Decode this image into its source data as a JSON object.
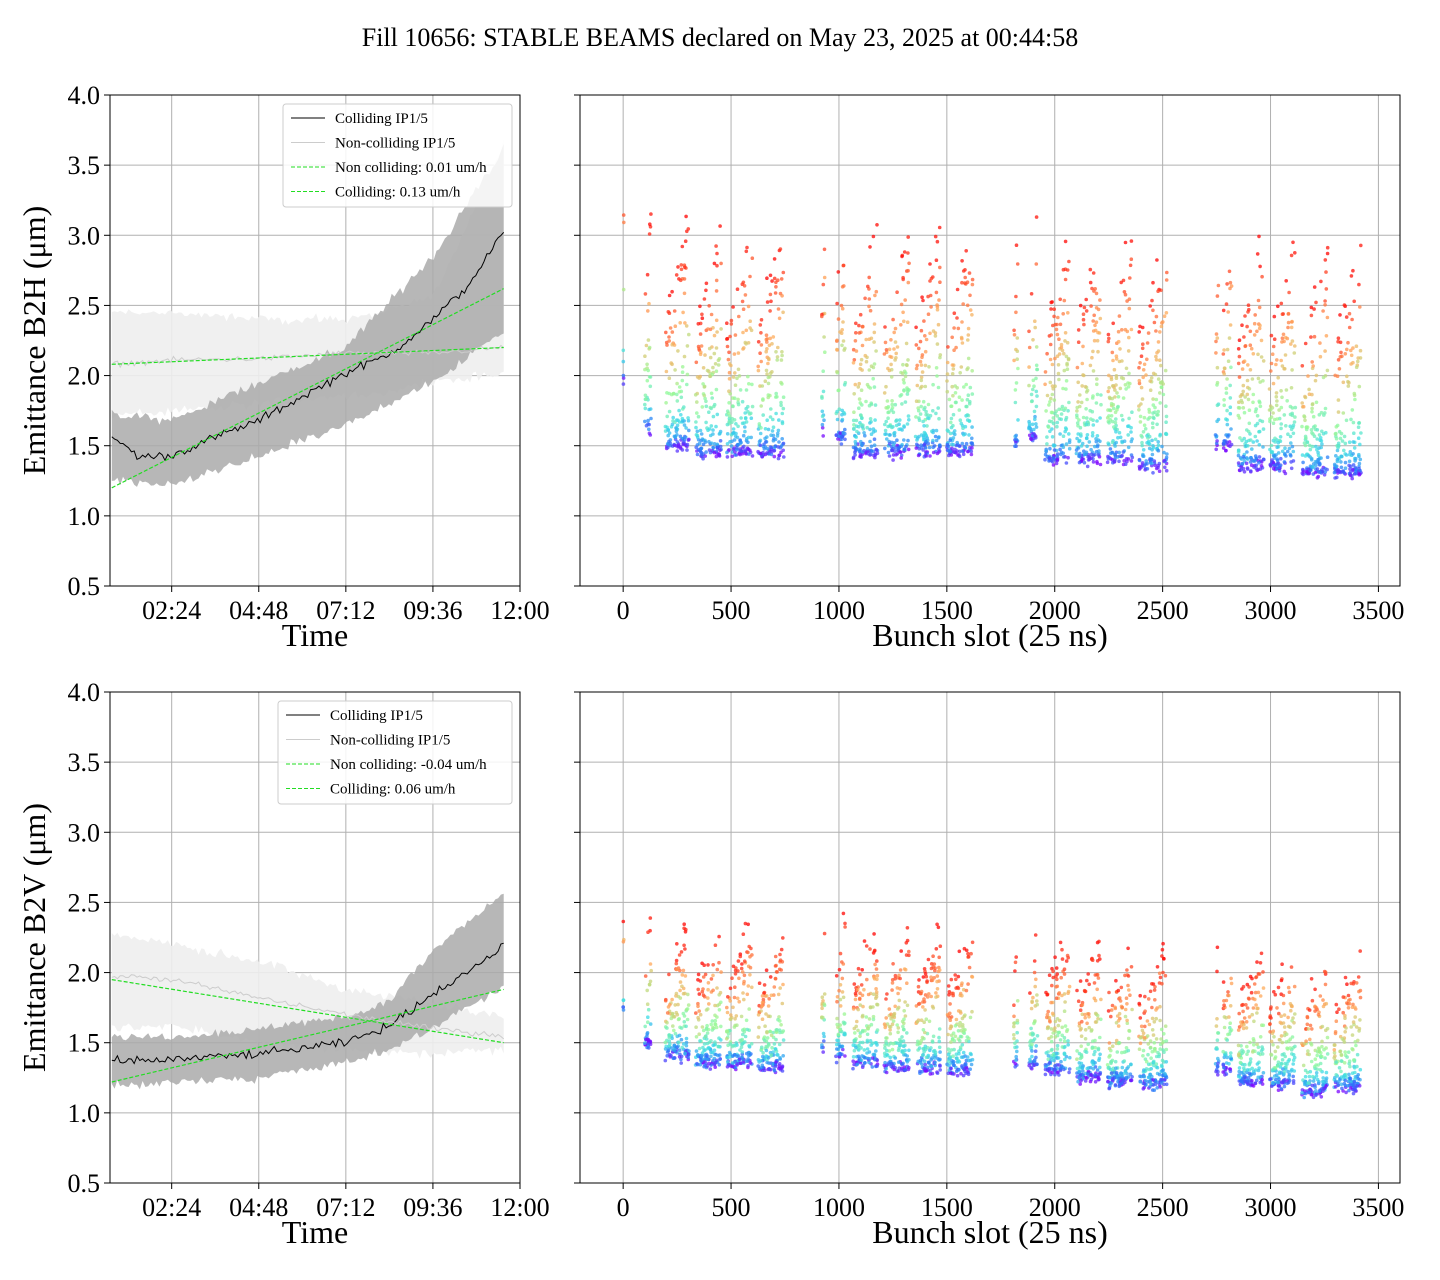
{
  "figure": {
    "title": "Fill 10656: STABLE BEAMS declared on May 23, 2025 at 00:44:58"
  },
  "colors": {
    "colliding": "#000000",
    "non_colliding": "#cccccc",
    "fit": "#22dd22",
    "band_colliding": "#aaaaaa",
    "band_non_colliding": "#eeeeee",
    "grid": "#b0b0b0"
  },
  "chart_data": [
    {
      "id": "b2h-time",
      "type": "line",
      "xlabel": "Time",
      "ylabel": "Emittance B2H (μm)",
      "ylim": [
        0.5,
        4.0
      ],
      "yticks": [
        "0.5",
        "1.0",
        "1.5",
        "2.0",
        "2.5",
        "3.0",
        "3.5",
        "4.0"
      ],
      "x_range_hours": [
        0.7,
        12.0
      ],
      "xticks": [
        {
          "label": "02:24",
          "h": 2.4
        },
        {
          "label": "04:48",
          "h": 4.8
        },
        {
          "label": "07:12",
          "h": 7.2
        },
        {
          "label": "09:36",
          "h": 9.6
        },
        {
          "label": "12:00",
          "h": 12.0
        }
      ],
      "series": [
        {
          "name": "Colliding IP1/5",
          "kind": "colliding",
          "x": [
            0.75,
            1.5,
            2.4,
            3.5,
            4.8,
            6.0,
            7.2,
            8.4,
            9.6,
            10.5,
            11.55
          ],
          "y": [
            1.57,
            1.42,
            1.43,
            1.55,
            1.68,
            1.85,
            2.02,
            2.15,
            2.4,
            2.62,
            3.02
          ]
        },
        {
          "name": "Non-colliding IP1/5",
          "kind": "non_colliding",
          "x": [
            0.75,
            2.4,
            4.8,
            7.2,
            9.6,
            11.55
          ],
          "y": [
            2.08,
            2.11,
            2.12,
            2.16,
            2.16,
            2.2
          ]
        },
        {
          "name": "Non colliding: 0.01 um/h",
          "kind": "fit",
          "x": [
            0.75,
            11.55
          ],
          "y": [
            2.08,
            2.2
          ]
        },
        {
          "name": "Colliding: 0.13 um/h",
          "kind": "fit",
          "x": [
            0.75,
            11.55
          ],
          "y": [
            1.2,
            2.62
          ]
        }
      ],
      "bands": [
        {
          "for": "Non-colliding IP1/5",
          "x": [
            0.75,
            2.4,
            4.8,
            7.2,
            9.6,
            11.55
          ],
          "lower": [
            1.72,
            1.75,
            1.8,
            1.85,
            1.95,
            2.0
          ],
          "upper": [
            2.45,
            2.45,
            2.4,
            2.4,
            2.55,
            3.65
          ]
        },
        {
          "for": "Colliding IP1/5",
          "x": [
            0.75,
            2.4,
            4.8,
            7.2,
            9.6,
            11.55
          ],
          "lower": [
            1.25,
            1.22,
            1.42,
            1.65,
            1.95,
            2.32
          ],
          "upper": [
            1.72,
            1.68,
            1.95,
            2.2,
            2.85,
            3.62
          ]
        }
      ]
    },
    {
      "id": "b2h-bunch",
      "type": "scatter",
      "xlabel": "Bunch slot (25 ns)",
      "ylim": [
        0.5,
        4.0
      ],
      "xlim": [
        -200,
        3600
      ],
      "xticks": [
        "0",
        "500",
        "1000",
        "1500",
        "2000",
        "2500",
        "3000",
        "3500"
      ],
      "colormap": "rainbow (time: blue early → red late)",
      "trains": [
        {
          "start": 0,
          "end": 3,
          "base": 1.95
        },
        {
          "start": 100,
          "end": 130,
          "base": 1.6
        },
        {
          "start": 195,
          "end": 305,
          "base": 1.5
        },
        {
          "start": 335,
          "end": 455,
          "base": 1.45
        },
        {
          "start": 480,
          "end": 600,
          "base": 1.45
        },
        {
          "start": 625,
          "end": 745,
          "base": 1.45
        },
        {
          "start": 920,
          "end": 935,
          "base": 1.6
        },
        {
          "start": 985,
          "end": 1030,
          "base": 1.55
        },
        {
          "start": 1065,
          "end": 1180,
          "base": 1.45
        },
        {
          "start": 1210,
          "end": 1325,
          "base": 1.45
        },
        {
          "start": 1355,
          "end": 1470,
          "base": 1.45
        },
        {
          "start": 1500,
          "end": 1620,
          "base": 1.45
        },
        {
          "start": 1810,
          "end": 1830,
          "base": 1.5
        },
        {
          "start": 1880,
          "end": 1920,
          "base": 1.55
        },
        {
          "start": 1955,
          "end": 2070,
          "base": 1.4
        },
        {
          "start": 2100,
          "end": 2215,
          "base": 1.4
        },
        {
          "start": 2245,
          "end": 2360,
          "base": 1.4
        },
        {
          "start": 2390,
          "end": 2520,
          "base": 1.35
        },
        {
          "start": 2745,
          "end": 2760,
          "base": 1.5
        },
        {
          "start": 2780,
          "end": 2820,
          "base": 1.5
        },
        {
          "start": 2850,
          "end": 2970,
          "base": 1.35
        },
        {
          "start": 2995,
          "end": 3115,
          "base": 1.35
        },
        {
          "start": 3145,
          "end": 3265,
          "base": 1.3
        },
        {
          "start": 3295,
          "end": 3420,
          "base": 1.3
        }
      ]
    },
    {
      "id": "b2v-time",
      "type": "line",
      "xlabel": "Time",
      "ylabel": "Emittance B2V (μm)",
      "ylim": [
        0.5,
        4.0
      ],
      "yticks": [
        "0.5",
        "1.0",
        "1.5",
        "2.0",
        "2.5",
        "3.0",
        "3.5",
        "4.0"
      ],
      "x_range_hours": [
        0.7,
        12.0
      ],
      "xticks": [
        {
          "label": "02:24",
          "h": 2.4
        },
        {
          "label": "04:48",
          "h": 4.8
        },
        {
          "label": "07:12",
          "h": 7.2
        },
        {
          "label": "09:36",
          "h": 9.6
        },
        {
          "label": "12:00",
          "h": 12.0
        }
      ],
      "series": [
        {
          "name": "Colliding IP1/5",
          "kind": "colliding",
          "x": [
            0.75,
            2.4,
            4.8,
            7.2,
            8.4,
            9.6,
            10.5,
            11.55
          ],
          "y": [
            1.37,
            1.38,
            1.42,
            1.5,
            1.62,
            1.85,
            2.0,
            2.18
          ]
        },
        {
          "name": "Non-colliding IP1/5",
          "kind": "non_colliding",
          "x": [
            0.75,
            2.4,
            4.8,
            7.2,
            9.6,
            11.55
          ],
          "y": [
            1.98,
            1.95,
            1.82,
            1.7,
            1.6,
            1.55
          ]
        },
        {
          "name": "Non colliding: -0.04 um/h",
          "kind": "fit",
          "x": [
            0.75,
            11.55
          ],
          "y": [
            1.95,
            1.5
          ]
        },
        {
          "name": "Colliding: 0.06 um/h",
          "kind": "fit",
          "x": [
            0.75,
            11.55
          ],
          "y": [
            1.22,
            1.88
          ]
        }
      ],
      "bands": [
        {
          "for": "Non-colliding IP1/5",
          "x": [
            0.75,
            2.4,
            4.8,
            7.2,
            9.6,
            11.55
          ],
          "lower": [
            1.6,
            1.62,
            1.5,
            1.45,
            1.42,
            1.45
          ],
          "upper": [
            2.28,
            2.2,
            2.08,
            1.88,
            1.78,
            1.7
          ]
        },
        {
          "for": "Colliding IP1/5",
          "x": [
            0.75,
            2.4,
            4.8,
            7.2,
            8.4,
            9.6,
            10.5,
            11.55
          ],
          "lower": [
            1.2,
            1.22,
            1.25,
            1.35,
            1.45,
            1.6,
            1.75,
            1.9
          ],
          "upper": [
            1.55,
            1.55,
            1.6,
            1.68,
            1.8,
            2.15,
            2.35,
            2.55
          ]
        }
      ]
    },
    {
      "id": "b2v-bunch",
      "type": "scatter",
      "xlabel": "Bunch slot (25 ns)",
      "ylim": [
        0.5,
        4.0
      ],
      "xlim": [
        -200,
        3600
      ],
      "xticks": [
        "0",
        "500",
        "1000",
        "1500",
        "2000",
        "2500",
        "3000",
        "3500"
      ],
      "colormap": "rainbow (time: blue early → red late)",
      "trains": [
        {
          "start": 0,
          "end": 3,
          "base": 1.7
        },
        {
          "start": 100,
          "end": 130,
          "base": 1.5
        },
        {
          "start": 195,
          "end": 305,
          "base": 1.4
        },
        {
          "start": 335,
          "end": 455,
          "base": 1.35
        },
        {
          "start": 480,
          "end": 600,
          "base": 1.35
        },
        {
          "start": 625,
          "end": 745,
          "base": 1.32
        },
        {
          "start": 920,
          "end": 935,
          "base": 1.45
        },
        {
          "start": 985,
          "end": 1030,
          "base": 1.4
        },
        {
          "start": 1065,
          "end": 1180,
          "base": 1.35
        },
        {
          "start": 1210,
          "end": 1325,
          "base": 1.32
        },
        {
          "start": 1355,
          "end": 1470,
          "base": 1.32
        },
        {
          "start": 1500,
          "end": 1620,
          "base": 1.3
        },
        {
          "start": 1810,
          "end": 1830,
          "base": 1.35
        },
        {
          "start": 1880,
          "end": 1920,
          "base": 1.35
        },
        {
          "start": 1955,
          "end": 2070,
          "base": 1.3
        },
        {
          "start": 2100,
          "end": 2215,
          "base": 1.25
        },
        {
          "start": 2245,
          "end": 2360,
          "base": 1.22
        },
        {
          "start": 2390,
          "end": 2520,
          "base": 1.2
        },
        {
          "start": 2745,
          "end": 2760,
          "base": 1.3
        },
        {
          "start": 2780,
          "end": 2820,
          "base": 1.3
        },
        {
          "start": 2850,
          "end": 2970,
          "base": 1.22
        },
        {
          "start": 2995,
          "end": 3115,
          "base": 1.2
        },
        {
          "start": 3145,
          "end": 3265,
          "base": 1.15
        },
        {
          "start": 3295,
          "end": 3420,
          "base": 1.18
        }
      ]
    }
  ]
}
